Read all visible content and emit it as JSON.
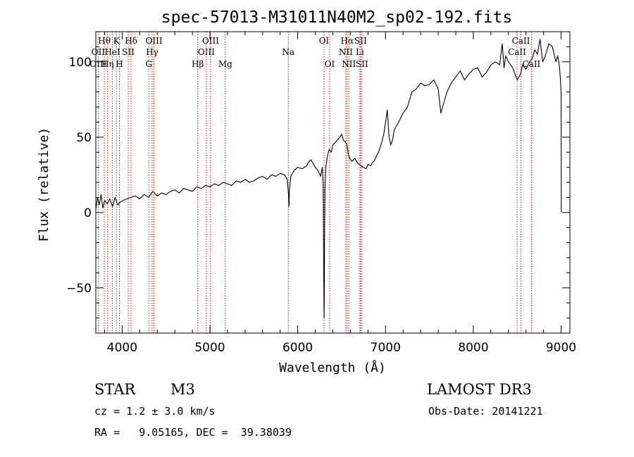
{
  "chart_data": {
    "type": "line",
    "title": "spec-57013-M31011N40M2_sp02-192.fits",
    "xlabel": "Wavelength (Å)",
    "ylabel": "Flux (relative)",
    "xlim": [
      3700,
      9100
    ],
    "ylim": [
      -80,
      120
    ],
    "x_ticks": [
      4000,
      5000,
      6000,
      7000,
      8000,
      9000
    ],
    "x_tick_labels": [
      "4000",
      "5000",
      "6000",
      "7000",
      "8000",
      "9000"
    ],
    "y_ticks": [
      -50,
      0,
      50,
      100
    ],
    "y_tick_labels": [
      "−50",
      "0",
      "50",
      "100"
    ],
    "series": [
      {
        "name": "flux",
        "x": [
          3700,
          3720,
          3740,
          3760,
          3780,
          3800,
          3830,
          3860,
          3890,
          3920,
          3950,
          3980,
          4010,
          4050,
          4100,
          4150,
          4200,
          4250,
          4300,
          4350,
          4400,
          4450,
          4500,
          4550,
          4600,
          4650,
          4700,
          4750,
          4800,
          4850,
          4900,
          4950,
          5000,
          5050,
          5100,
          5150,
          5200,
          5250,
          5300,
          5350,
          5400,
          5450,
          5500,
          5550,
          5600,
          5650,
          5700,
          5750,
          5800,
          5850,
          5880,
          5895,
          5900,
          5905,
          5920,
          5960,
          6000,
          6050,
          6100,
          6120,
          6150,
          6180,
          6200,
          6230,
          6260,
          6280,
          6290,
          6300,
          6302,
          6305,
          6310,
          6320,
          6340,
          6360,
          6380,
          6400,
          6420,
          6450,
          6480,
          6500,
          6520,
          6540,
          6560,
          6580,
          6600,
          6620,
          6650,
          6680,
          6700,
          6720,
          6750,
          6780,
          6800,
          6830,
          6850,
          6880,
          6900,
          6920,
          6950,
          6980,
          7000,
          7020,
          7040,
          7060,
          7080,
          7100,
          7150,
          7200,
          7250,
          7300,
          7350,
          7400,
          7450,
          7500,
          7550,
          7600,
          7630,
          7650,
          7670,
          7700,
          7750,
          7800,
          7850,
          7900,
          7950,
          8000,
          8050,
          8100,
          8150,
          8200,
          8250,
          8300,
          8330,
          8350,
          8370,
          8400,
          8450,
          8500,
          8540,
          8560,
          8600,
          8640,
          8670,
          8700,
          8730,
          8760,
          8790,
          8820,
          8860,
          8900,
          8940,
          8960,
          8980,
          8990,
          9000,
          9002
        ],
        "y": [
          2,
          10,
          5,
          12,
          3,
          8,
          6,
          9,
          4,
          10,
          5,
          7,
          8,
          9,
          10,
          11,
          9,
          12,
          10,
          14,
          11,
          13,
          12,
          14,
          15,
          13,
          16,
          15,
          14,
          17,
          16,
          18,
          17,
          19,
          18,
          20,
          19,
          18,
          21,
          20,
          22,
          20,
          21,
          23,
          24,
          22,
          25,
          24,
          26,
          25,
          22,
          12,
          4,
          15,
          24,
          28,
          30,
          29,
          31,
          33,
          35,
          32,
          30,
          28,
          24,
          30,
          18,
          -70,
          -60,
          -20,
          15,
          30,
          38,
          42,
          40,
          45,
          46,
          48,
          50,
          52,
          48,
          47,
          45,
          38,
          35,
          34,
          36,
          33,
          32,
          31,
          30,
          29,
          32,
          31,
          33,
          35,
          38,
          40,
          45,
          52,
          60,
          68,
          50,
          45,
          48,
          55,
          60,
          66,
          70,
          80,
          82,
          86,
          84,
          85,
          88,
          82,
          66,
          70,
          74,
          80,
          86,
          90,
          94,
          88,
          92,
          95,
          96,
          90,
          93,
          98,
          100,
          98,
          112,
          96,
          104,
          100,
          96,
          88,
          92,
          98,
          95,
          100,
          102,
          108,
          105,
          115,
          100,
          104,
          112,
          110,
          100,
          104,
          98,
          90,
          80,
          0
        ]
      }
    ],
    "line_labels": [
      {
        "label": "Hθ",
        "x": 3797,
        "row": 1
      },
      {
        "label": "OII",
        "x": 3727,
        "row": 2
      },
      {
        "label": "OIII",
        "x": 3727,
        "row": 3
      },
      {
        "label": "K",
        "x": 3934,
        "row": 1
      },
      {
        "label": "HeI",
        "x": 3889,
        "row": 2
      },
      {
        "label": "Hη",
        "x": 3835,
        "row": 3
      },
      {
        "label": "H",
        "x": 3969,
        "row": 3
      },
      {
        "label": "SII",
        "x": 4070,
        "row": 2
      },
      {
        "label": "Hδ",
        "x": 4102,
        "row": 1
      },
      {
        "label": "OIII",
        "x": 4363,
        "row": 1
      },
      {
        "label": "Hγ",
        "x": 4341,
        "row": 2
      },
      {
        "label": "G",
        "x": 4304,
        "row": 3
      },
      {
        "label": "OIII",
        "x": 5007,
        "row": 1
      },
      {
        "label": "OIII",
        "x": 4959,
        "row": 2
      },
      {
        "label": "Hβ",
        "x": 4861,
        "row": 3
      },
      {
        "label": "Mg",
        "x": 5175,
        "row": 3
      },
      {
        "label": "Na",
        "x": 5893,
        "row": 2
      },
      {
        "label": "OI",
        "x": 6300,
        "row": 1
      },
      {
        "label": "OI",
        "x": 6364,
        "row": 3
      },
      {
        "label": "Hα",
        "x": 6563,
        "row": 1
      },
      {
        "label": "NII",
        "x": 6548,
        "row": 2
      },
      {
        "label": "NII",
        "x": 6583,
        "row": 3
      },
      {
        "label": "SII",
        "x": 6716,
        "row": 1
      },
      {
        "label": "Li",
        "x": 6708,
        "row": 2
      },
      {
        "label": "SII",
        "x": 6731,
        "row": 3
      },
      {
        "label": "CaII",
        "x": 8542,
        "row": 1
      },
      {
        "label": "CaII",
        "x": 8498,
        "row": 2
      },
      {
        "label": "CaII",
        "x": 8662,
        "row": 3
      }
    ],
    "line_wavelengths": [
      3727,
      3797,
      3835,
      3889,
      3934,
      3969,
      4070,
      4102,
      4304,
      4341,
      4363,
      4861,
      4959,
      5007,
      5175,
      5893,
      6300,
      6364,
      6548,
      6563,
      6583,
      6708,
      6716,
      6731,
      8498,
      8542,
      8662
    ]
  },
  "info": {
    "object_type": "STAR",
    "subclass": "M3",
    "survey": "LAMOST DR3",
    "cz": "cz = 1.2 ± 3.0 km/s",
    "obs_date": "Obs-Date: 20141221",
    "coords": "RA =   9.05165, DEC =  39.38039"
  },
  "colors": {
    "line_markers": "#c00000",
    "spectrum": "#000000",
    "axes": "#000000"
  }
}
